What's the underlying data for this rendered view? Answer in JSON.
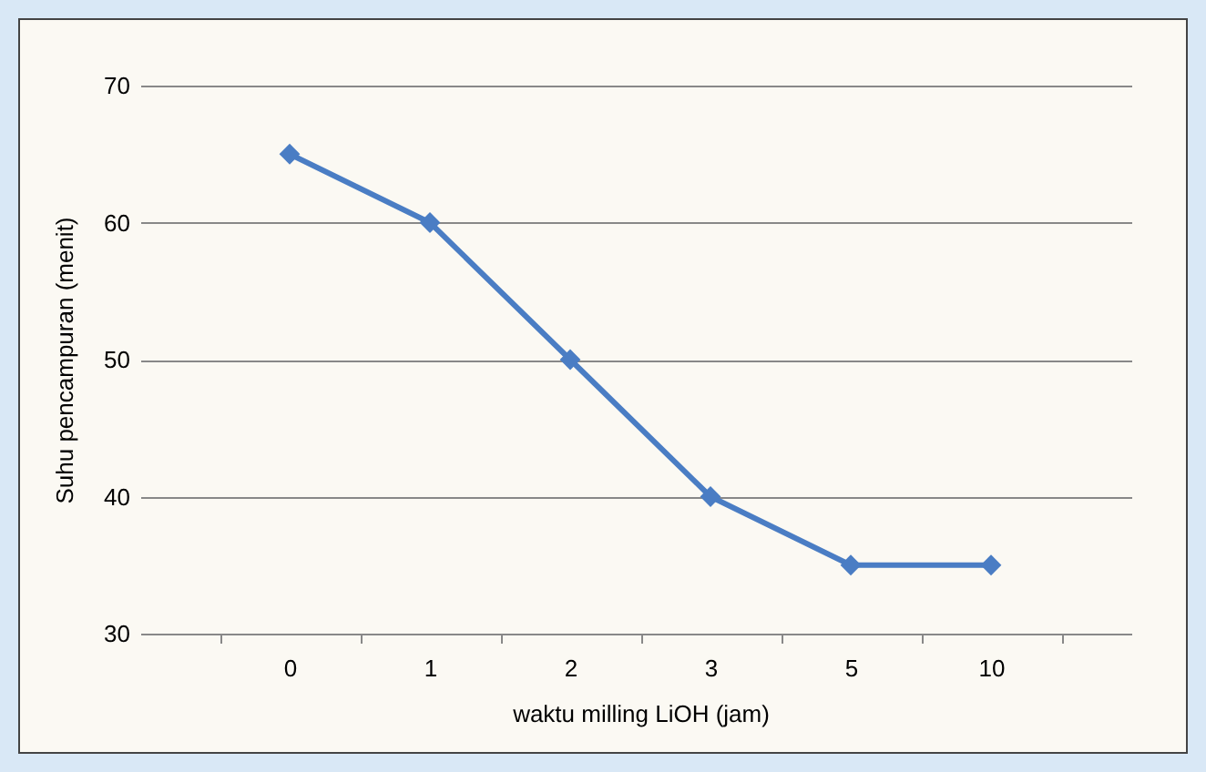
{
  "chart_data": {
    "type": "line",
    "xlabel": "waktu milling LiOH (jam)",
    "ylabel": "Suhu pencampuran (menit)",
    "categories": [
      "0",
      "1",
      "2",
      "3",
      "5",
      "10"
    ],
    "series": [
      {
        "color": "#4a7dc4",
        "values": [
          65,
          60,
          50,
          40,
          35,
          35
        ]
      }
    ],
    "ylim": [
      30,
      70
    ],
    "yticks": [
      30,
      40,
      50,
      60,
      70
    ],
    "grid": "y",
    "marker": "diamond",
    "legend": false
  }
}
